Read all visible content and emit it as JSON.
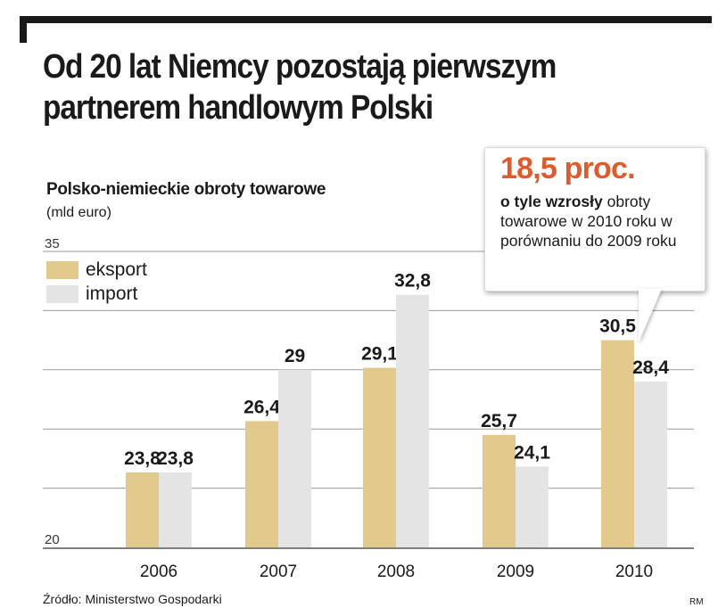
{
  "headline": "Od 20 lat Niemcy pozostają pierwszym partnerem handlowym Polski",
  "chart_data": {
    "type": "bar",
    "title": "Polsko-niemieckie obroty towarowe",
    "unit_label": "(mld euro)",
    "categories": [
      "2006",
      "2007",
      "2008",
      "2009",
      "2010"
    ],
    "series": [
      {
        "name": "eksport",
        "color": "#e2c98c",
        "values": [
          23.8,
          26.4,
          29.1,
          25.7,
          30.5
        ],
        "labels": [
          "23,8",
          "26,4",
          "29,1",
          "25,7",
          "30,5"
        ]
      },
      {
        "name": "import",
        "color": "#e4e4e4",
        "values": [
          23.8,
          29,
          32.8,
          24.1,
          28.4
        ],
        "labels": [
          "23,8",
          "29",
          "32,8",
          "24,1",
          "28,4"
        ]
      }
    ],
    "ylim": [
      20,
      35
    ],
    "ytick_labels": [
      "20",
      "35"
    ],
    "grid": true,
    "legend": "top-left"
  },
  "callout": {
    "value": "18,5 proc.",
    "bold_text": "o tyle wzrosły",
    "text": " obroty towarowe w 2010 roku w porównaniu do 2009 roku"
  },
  "source": "Źródło: Ministerstwo Gospodarki",
  "credit": "RM"
}
